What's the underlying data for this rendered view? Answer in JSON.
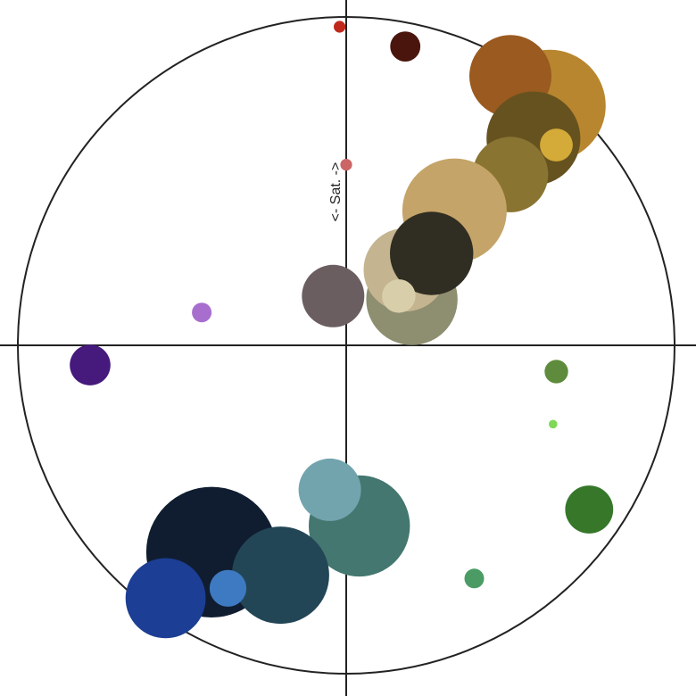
{
  "chart_data": {
    "type": "scatter",
    "title": "",
    "axis_label": "<- Sat. ->",
    "xlim": [
      -1,
      1
    ],
    "ylim": [
      -1,
      1
    ],
    "unit_circle": true,
    "grid": false,
    "legend": "none",
    "points": [
      {
        "x": -0.02,
        "y": 0.97,
        "size": 0.018,
        "color": "#c0281c"
      },
      {
        "x": 0.18,
        "y": 0.91,
        "size": 0.046,
        "color": "#4a150c"
      },
      {
        "x": 0.62,
        "y": 0.73,
        "size": 0.17,
        "color": "#b8862e"
      },
      {
        "x": 0.5,
        "y": 0.82,
        "size": 0.125,
        "color": "#9a5a20"
      },
      {
        "x": 0.57,
        "y": 0.63,
        "size": 0.143,
        "color": "#66521f"
      },
      {
        "x": 0.64,
        "y": 0.61,
        "size": 0.05,
        "color": "#d4aa38"
      },
      {
        "x": 0.5,
        "y": 0.52,
        "size": 0.115,
        "color": "#8a7432"
      },
      {
        "x": 0.33,
        "y": 0.41,
        "size": 0.159,
        "color": "#c4a468"
      },
      {
        "x": 0.2,
        "y": 0.14,
        "size": 0.139,
        "color": "#8e8e70"
      },
      {
        "x": 0.18,
        "y": 0.23,
        "size": 0.127,
        "color": "#c4b490"
      },
      {
        "x": 0.26,
        "y": 0.28,
        "size": 0.127,
        "color": "#302d22"
      },
      {
        "x": 0.16,
        "y": 0.15,
        "size": 0.051,
        "color": "#d8ceaa"
      },
      {
        "x": -0.04,
        "y": 0.15,
        "size": 0.095,
        "color": "#6b5e60"
      },
      {
        "x": 0.0,
        "y": 0.55,
        "size": 0.018,
        "color": "#cc6566"
      },
      {
        "x": -0.44,
        "y": 0.1,
        "size": 0.03,
        "color": "#a86ece"
      },
      {
        "x": -0.78,
        "y": -0.06,
        "size": 0.062,
        "color": "#46197c"
      },
      {
        "x": 0.64,
        "y": -0.08,
        "size": 0.036,
        "color": "#5e8c3c"
      },
      {
        "x": 0.63,
        "y": -0.24,
        "size": 0.013,
        "color": "#80d858"
      },
      {
        "x": 0.74,
        "y": -0.5,
        "size": 0.073,
        "color": "#36772a"
      },
      {
        "x": 0.39,
        "y": -0.71,
        "size": 0.03,
        "color": "#4a9c64"
      },
      {
        "x": 0.04,
        "y": -0.55,
        "size": 0.154,
        "color": "#437770"
      },
      {
        "x": -0.05,
        "y": -0.44,
        "size": 0.095,
        "color": "#72a4ae"
      },
      {
        "x": -0.41,
        "y": -0.63,
        "size": 0.199,
        "color": "#101d30"
      },
      {
        "x": -0.2,
        "y": -0.7,
        "size": 0.148,
        "color": "#234656"
      },
      {
        "x": -0.36,
        "y": -0.74,
        "size": 0.056,
        "color": "#3e7ac2"
      },
      {
        "x": -0.55,
        "y": -0.77,
        "size": 0.122,
        "color": "#1c3e94"
      }
    ]
  }
}
